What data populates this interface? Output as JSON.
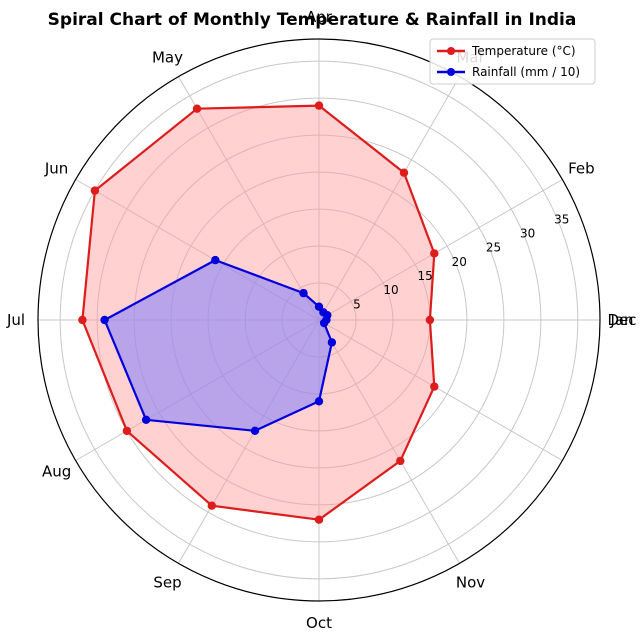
{
  "chart_data": {
    "type": "polar-line",
    "title": "Spiral Chart of Monthly Temperature & Rainfall in India",
    "months": [
      "Jan",
      "Feb",
      "Mar",
      "Apr",
      "May",
      "Jun",
      "Jul",
      "Aug",
      "Sep",
      "Oct",
      "Nov",
      "Dec"
    ],
    "series": [
      {
        "name": "Temperature (°C)",
        "color": "#dd1c1c",
        "fill": "#ff9999",
        "values": [
          15,
          18,
          23,
          29,
          33,
          35,
          32,
          30,
          29,
          27,
          22,
          18
        ]
      },
      {
        "name": "Rainfall (mm / 10)",
        "color": "#0000dd",
        "fill": "#8080ff",
        "values": [
          1.0,
          1.3,
          1.2,
          1.8,
          4.2,
          16.2,
          29.0,
          27.0,
          17.3,
          11.0,
          3.5,
          0.8
        ]
      }
    ],
    "radial_ticks": [
      5,
      10,
      15,
      20,
      25,
      30,
      35
    ],
    "rlim": [
      0,
      38
    ],
    "grid": true,
    "legend_position": "top-right"
  }
}
